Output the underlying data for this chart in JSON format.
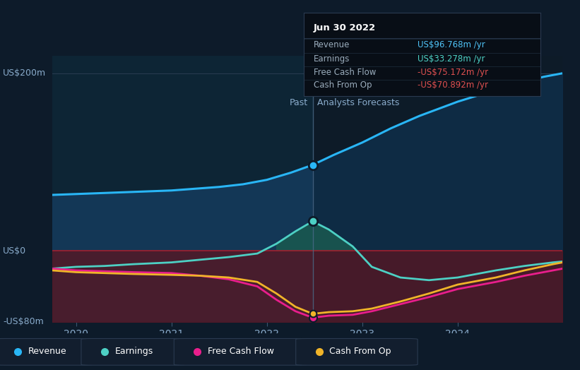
{
  "bg_color": "#0d1b2a",
  "plot_bg_left": "#0d2035",
  "plot_bg_right": "#0d1b2a",
  "divider_color": "#5a7090",
  "grid_color": "#1e3048",
  "tooltip_title": "Jun 30 2022",
  "tooltip_rows": [
    {
      "label": "Revenue",
      "value": "US$96.768m /yr",
      "color": "#4fc3f7"
    },
    {
      "label": "Earnings",
      "value": "US$33.278m /yr",
      "color": "#4dd0c4"
    },
    {
      "label": "Free Cash Flow",
      "value": "-US$75.172m /yr",
      "color": "#e05050"
    },
    {
      "label": "Cash From Op",
      "value": "-US$70.892m /yr",
      "color": "#e05050"
    }
  ],
  "ylim": [
    -80,
    220
  ],
  "xlim": [
    2019.75,
    2025.1
  ],
  "yticks": [
    -80,
    0,
    200
  ],
  "ytick_labels": [
    "-US$80m",
    "US$0",
    "US$200m"
  ],
  "xticks": [
    2020,
    2021,
    2022,
    2023,
    2024
  ],
  "past_label": "Past",
  "forecast_label": "Analysts Forecasts",
  "divider_x": 2022.48,
  "revenue_color": "#29b6f6",
  "earnings_color": "#4dd0c4",
  "fcf_color": "#e91e8c",
  "cashop_color": "#f0b429",
  "legend_box_color": "#162030",
  "legend_border_color": "#3a4a5a",
  "x_revenue": [
    2019.75,
    2020.0,
    2020.25,
    2020.5,
    2020.75,
    2021.0,
    2021.25,
    2021.5,
    2021.75,
    2022.0,
    2022.25,
    2022.48,
    2022.7,
    2023.0,
    2023.3,
    2023.6,
    2024.0,
    2024.3,
    2024.6,
    2024.9,
    2025.1
  ],
  "y_revenue": [
    63,
    64,
    65,
    66,
    67,
    68,
    70,
    72,
    75,
    80,
    88,
    96.8,
    108,
    122,
    138,
    152,
    168,
    178,
    188,
    196,
    200
  ],
  "x_earnings": [
    2019.75,
    2020.0,
    2020.3,
    2020.6,
    2021.0,
    2021.3,
    2021.6,
    2021.9,
    2022.1,
    2022.3,
    2022.48,
    2022.65,
    2022.9,
    2023.1,
    2023.4,
    2023.7,
    2024.0,
    2024.4,
    2024.7,
    2025.0,
    2025.1
  ],
  "y_earnings": [
    -20,
    -18,
    -17,
    -15,
    -13,
    -10,
    -7,
    -3,
    8,
    22,
    33.3,
    24,
    5,
    -18,
    -30,
    -33,
    -30,
    -22,
    -17,
    -13,
    -12
  ],
  "x_fcf": [
    2019.75,
    2020.0,
    2020.3,
    2020.6,
    2021.0,
    2021.3,
    2021.6,
    2021.9,
    2022.1,
    2022.3,
    2022.48,
    2022.65,
    2022.9,
    2023.1,
    2023.4,
    2023.7,
    2024.0,
    2024.4,
    2024.7,
    2025.0,
    2025.1
  ],
  "y_fcf": [
    -20,
    -22,
    -23,
    -24,
    -25,
    -28,
    -32,
    -40,
    -55,
    -68,
    -75.2,
    -73,
    -72,
    -68,
    -60,
    -52,
    -43,
    -35,
    -28,
    -22,
    -20
  ],
  "x_cashop": [
    2019.75,
    2020.0,
    2020.3,
    2020.6,
    2021.0,
    2021.3,
    2021.6,
    2021.9,
    2022.1,
    2022.3,
    2022.48,
    2022.65,
    2022.9,
    2023.1,
    2023.4,
    2023.7,
    2024.0,
    2024.4,
    2024.7,
    2025.0,
    2025.1
  ],
  "y_cashop": [
    -22,
    -24,
    -25,
    -26,
    -27,
    -28,
    -30,
    -35,
    -48,
    -63,
    -70.9,
    -69,
    -68,
    -65,
    -57,
    -48,
    -38,
    -30,
    -22,
    -15,
    -13
  ]
}
